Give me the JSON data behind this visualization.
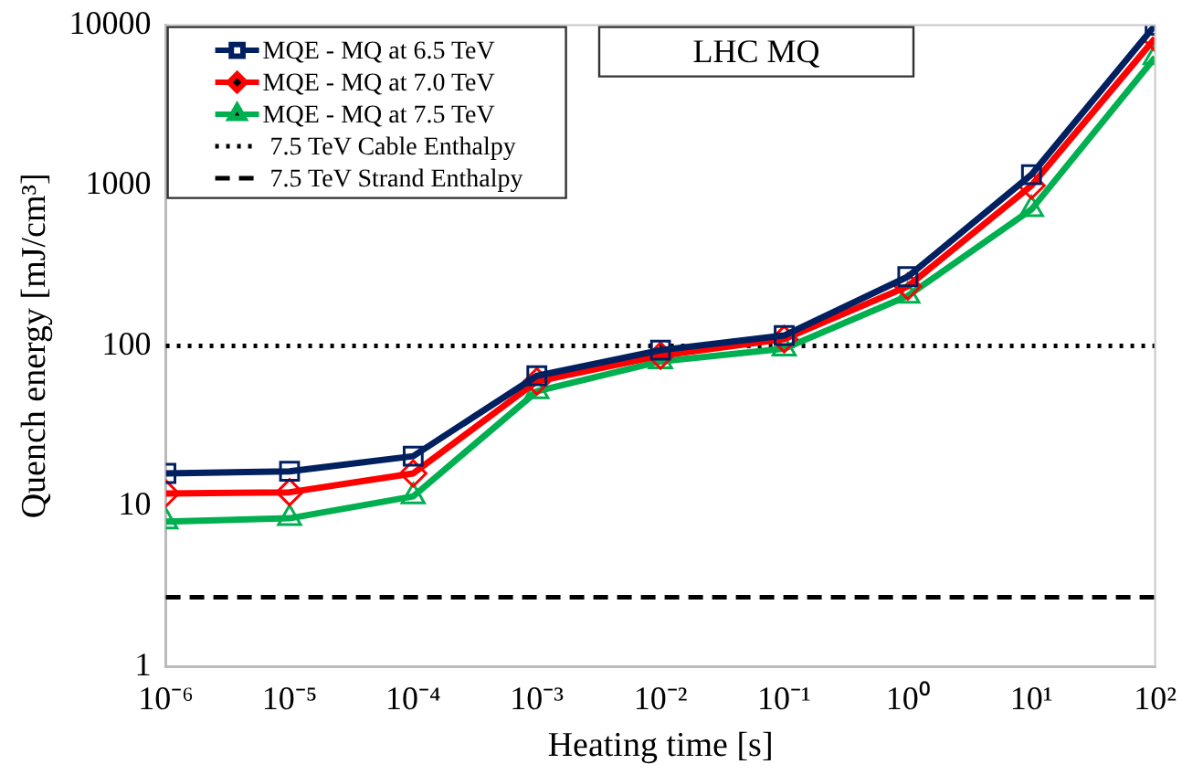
{
  "chart_data": {
    "type": "line",
    "title": "LHC MQ",
    "xlabel": "Heating time [s]",
    "ylabel": "Quench energy [mJ/cm³]",
    "x": [
      1e-06,
      1e-05,
      0.0001,
      0.001,
      0.01,
      0.1,
      1,
      10,
      100
    ],
    "series": [
      {
        "name": "MQE - MQ at 6.5 TeV",
        "color": "#002060",
        "marker": "square",
        "values": [
          16,
          16.5,
          20.5,
          65,
          94,
          116,
          270,
          1170,
          10000
        ]
      },
      {
        "name": "MQE - MQ at 7.0 TeV",
        "color": "#ff0000",
        "marker": "diamond",
        "values": [
          12,
          12.2,
          16,
          60,
          87,
          110,
          235,
          1000,
          8300
        ]
      },
      {
        "name": "MQE - MQ at 7.5 TeV",
        "color": "#00b050",
        "marker": "triangle",
        "values": [
          8,
          8.4,
          11.5,
          52,
          80,
          96,
          205,
          710,
          6300
        ]
      }
    ],
    "ref_lines": [
      {
        "axis": "y",
        "value": 100,
        "label": "7.5 TeV Cable Enthalpy",
        "color": "#000000",
        "line_style": "dotted"
      },
      {
        "axis": "y",
        "value": 2.7,
        "label": "7.5 TeV Strand Enthalpy",
        "color": "#000000",
        "line_style": "dashed"
      }
    ],
    "log": "xy",
    "xlim": [
      1e-06,
      100
    ],
    "ylim": [
      1,
      10000
    ],
    "xticks": [
      {
        "value": 1e-06,
        "label": "10⁻⁶"
      },
      {
        "value": 1e-05,
        "label": "10⁻⁵"
      },
      {
        "value": 0.0001,
        "label": "10⁻⁴"
      },
      {
        "value": 0.001,
        "label": "10⁻³"
      },
      {
        "value": 0.01,
        "label": "10⁻²"
      },
      {
        "value": 0.1,
        "label": "10⁻¹"
      },
      {
        "value": 1,
        "label": "10⁰"
      },
      {
        "value": 10,
        "label": "10¹"
      },
      {
        "value": 100,
        "label": "10²"
      }
    ],
    "yticks": [
      1,
      10,
      100,
      1000,
      10000
    ],
    "grid": false,
    "legend": "top left"
  }
}
